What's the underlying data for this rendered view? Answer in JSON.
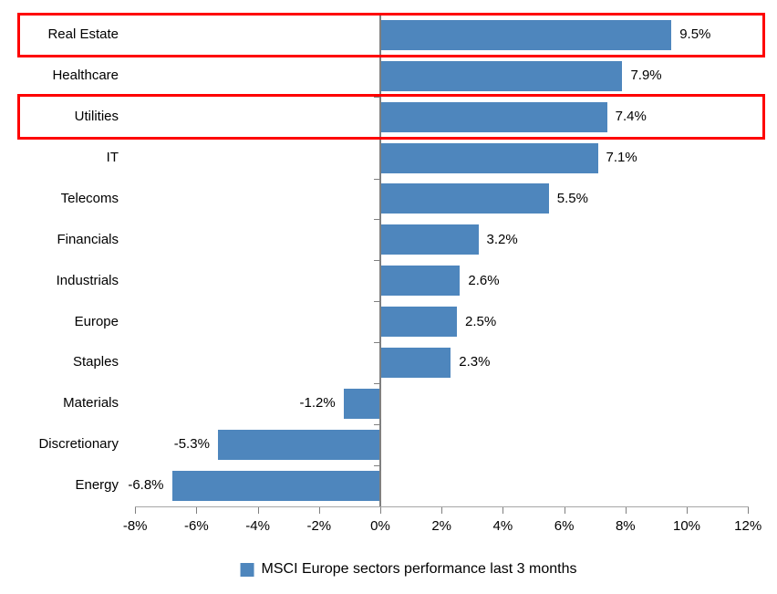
{
  "chart_data": {
    "type": "bar",
    "orientation": "horizontal",
    "title": "",
    "categories": [
      "Real Estate",
      "Healthcare",
      "Utilities",
      "IT",
      "Telecoms",
      "Financials",
      "Industrials",
      "Europe",
      "Staples",
      "Materials",
      "Discretionary",
      "Energy"
    ],
    "values": [
      9.5,
      7.9,
      7.4,
      7.1,
      5.5,
      3.2,
      2.6,
      2.5,
      2.3,
      -1.2,
      -5.3,
      -6.8
    ],
    "value_labels": [
      "9.5%",
      "7.9%",
      "7.4%",
      "7.1%",
      "5.5%",
      "3.2%",
      "2.6%",
      "2.5%",
      "2.3%",
      "-1.2%",
      "-5.3%",
      "-6.8%"
    ],
    "highlighted_categories": [
      "Real Estate",
      "Utilities"
    ],
    "legend": "MSCI Europe sectors performance last 3 months",
    "legend_position": "bottom-center",
    "x_axis": {
      "min": -8,
      "max": 12,
      "tick_step": 2,
      "tick_values": [
        -8,
        -6,
        -4,
        -2,
        0,
        2,
        4,
        6,
        8,
        10,
        12
      ],
      "tick_labels": [
        "-8%",
        "-6%",
        "-4%",
        "-2%",
        "0%",
        "2%",
        "4%",
        "6%",
        "8%",
        "10%",
        "12%"
      ]
    },
    "grid": false,
    "colors": {
      "bar": "#4E86BD",
      "highlight_box": "#FE0000",
      "value_axis_line": "#A6A6A6",
      "category_axis_line": "#7F7F7F",
      "tick": "#7F7F7F",
      "text": "#000000",
      "background": "#FFFFFF"
    }
  }
}
